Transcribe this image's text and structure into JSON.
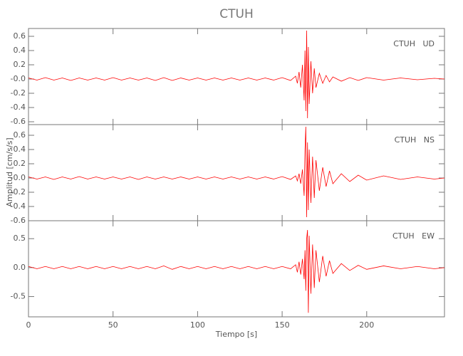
{
  "title": "CTUH",
  "xlabel": "Tiempo [s]",
  "ylabel": "Amplitud [cm/s/s]",
  "chart_data": [
    {
      "type": "line",
      "annotation": "CTUH   UD",
      "color": "#ff0000",
      "xlim": [
        0,
        246
      ],
      "xticks": [
        0,
        50,
        100,
        150,
        200
      ],
      "ylim": [
        -0.64,
        0.71
      ],
      "yticks": [
        -0.6,
        -0.4,
        -0.2,
        {
          "value": 0,
          "label": "-0.0"
        },
        0.2,
        0.4,
        0.6
      ],
      "x": [
        0,
        5,
        10,
        15,
        20,
        25,
        30,
        35,
        40,
        45,
        50,
        55,
        60,
        65,
        70,
        75,
        80,
        85,
        90,
        95,
        100,
        105,
        110,
        115,
        120,
        125,
        130,
        135,
        140,
        145,
        150,
        155,
        158,
        159,
        160,
        161,
        162,
        163,
        163.5,
        164,
        164.5,
        165,
        165.5,
        166,
        167,
        168,
        169,
        170,
        172,
        174,
        176,
        178,
        180,
        185,
        190,
        195,
        200,
        210,
        220,
        230,
        240,
        246
      ],
      "values": [
        0.015,
        -0.015,
        0.02,
        -0.015,
        0.015,
        -0.02,
        0.015,
        -0.015,
        0.015,
        -0.015,
        0.02,
        -0.015,
        0.015,
        -0.015,
        0.015,
        -0.02,
        0.02,
        -0.02,
        0.015,
        -0.015,
        0.015,
        -0.015,
        0.015,
        -0.015,
        0.015,
        -0.015,
        0.015,
        -0.015,
        0.015,
        -0.015,
        0.02,
        -0.02,
        0.04,
        -0.06,
        0.1,
        -0.12,
        0.2,
        -0.3,
        0.4,
        -0.45,
        0.68,
        -0.55,
        0.45,
        -0.35,
        0.25,
        -0.2,
        0.15,
        -0.12,
        0.08,
        -0.06,
        0.05,
        -0.04,
        0.03,
        -0.03,
        0.02,
        -0.02,
        0.02,
        -0.015,
        0.015,
        -0.01,
        0.01,
        0
      ]
    },
    {
      "type": "line",
      "annotation": "CTUH   NS",
      "color": "#ff0000",
      "xlim": [
        0,
        246
      ],
      "xticks": [
        0,
        50,
        100,
        150,
        200
      ],
      "ylim": [
        -0.6,
        0.75
      ],
      "yticks": [
        -0.6,
        -0.4,
        -0.2,
        {
          "value": 0,
          "label": "-0.0"
        },
        0.2,
        0.4,
        0.6
      ],
      "x": [
        0,
        5,
        10,
        15,
        20,
        25,
        30,
        35,
        40,
        45,
        50,
        55,
        60,
        65,
        70,
        75,
        80,
        85,
        90,
        95,
        100,
        105,
        110,
        115,
        120,
        125,
        130,
        135,
        140,
        145,
        150,
        155,
        158,
        159,
        160,
        161,
        162,
        163,
        163.5,
        164,
        164.5,
        165,
        165.5,
        166,
        167,
        168,
        169,
        170,
        172,
        174,
        176,
        178,
        180,
        185,
        190,
        195,
        200,
        210,
        220,
        230,
        240,
        246
      ],
      "values": [
        0.015,
        -0.015,
        0.015,
        -0.02,
        0.015,
        -0.015,
        0.02,
        -0.015,
        0.015,
        -0.015,
        0.015,
        -0.015,
        0.015,
        -0.02,
        0.015,
        -0.015,
        0.015,
        -0.015,
        0.015,
        -0.015,
        0.015,
        -0.015,
        0.015,
        -0.015,
        0.015,
        -0.015,
        0.015,
        -0.015,
        0.015,
        -0.015,
        0.02,
        -0.02,
        0.03,
        -0.04,
        0.06,
        -0.08,
        0.12,
        -0.25,
        0.4,
        0.72,
        -0.55,
        0.5,
        -0.45,
        0.4,
        -0.35,
        0.3,
        -0.28,
        0.25,
        -0.18,
        0.15,
        -0.12,
        0.1,
        -0.08,
        0.06,
        -0.05,
        0.04,
        -0.03,
        0.03,
        -0.02,
        0.015,
        -0.015,
        0
      ]
    },
    {
      "type": "line",
      "annotation": "CTUH   EW",
      "color": "#ff0000",
      "xlim": [
        0,
        246
      ],
      "xticks": [
        0,
        50,
        100,
        150,
        200
      ],
      "ylim": [
        -0.85,
        0.81
      ],
      "yticks": [
        -0.5,
        {
          "value": 0,
          "label": "0.0"
        },
        0.5
      ],
      "x": [
        0,
        5,
        10,
        15,
        20,
        25,
        30,
        35,
        40,
        45,
        50,
        55,
        60,
        65,
        70,
        75,
        80,
        85,
        90,
        95,
        100,
        105,
        110,
        115,
        120,
        125,
        130,
        135,
        140,
        145,
        150,
        155,
        158,
        159,
        160,
        161,
        162,
        163,
        163.5,
        164,
        164.5,
        165,
        165.5,
        166,
        167,
        168,
        169,
        170,
        172,
        174,
        176,
        178,
        180,
        185,
        190,
        195,
        200,
        210,
        220,
        230,
        240,
        246
      ],
      "values": [
        0.02,
        -0.02,
        0.02,
        -0.02,
        0.02,
        -0.02,
        0.02,
        -0.02,
        0.02,
        -0.02,
        0.02,
        -0.02,
        0.02,
        -0.02,
        0.02,
        -0.02,
        0.03,
        -0.03,
        0.02,
        -0.02,
        0.02,
        -0.02,
        0.02,
        -0.02,
        0.02,
        -0.02,
        0.02,
        -0.02,
        0.02,
        -0.02,
        0.02,
        -0.02,
        0.05,
        -0.08,
        0.1,
        -0.12,
        0.15,
        -0.2,
        0.3,
        -0.4,
        0.5,
        0.65,
        -0.78,
        0.55,
        -0.45,
        0.4,
        -0.35,
        0.3,
        -0.25,
        0.2,
        -0.15,
        0.12,
        -0.1,
        0.07,
        -0.05,
        0.04,
        -0.03,
        0.03,
        -0.02,
        0.02,
        -0.02,
        0
      ]
    }
  ]
}
